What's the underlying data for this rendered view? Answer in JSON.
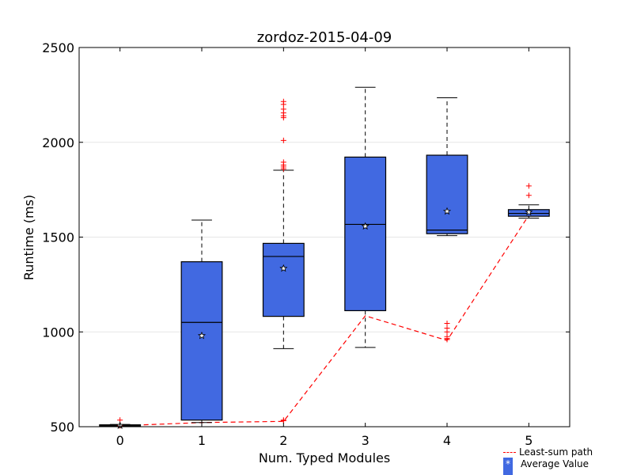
{
  "chart_data": {
    "type": "box",
    "title": "zordoz-2015-04-09",
    "xlabel": "Num. Typed Modules",
    "ylabel": "Runtime (ms)",
    "categories": [
      "0",
      "1",
      "2",
      "3",
      "4",
      "5"
    ],
    "ylim": [
      500,
      2500
    ],
    "yticks": [
      "500",
      "1000",
      "1500",
      "2000",
      "2500"
    ],
    "grid": "horizontal",
    "box_color": "#4169e1",
    "outlier_color": "#ff0000",
    "path_color": "#ff0000",
    "boxes": [
      {
        "category": "0",
        "whisker_low": 500,
        "q1": 502,
        "median": 506,
        "q3": 510,
        "whisker_high": 512,
        "mean": 506,
        "outliers": [
          535,
          505
        ]
      },
      {
        "category": "1",
        "whisker_low": 522,
        "q1": 535,
        "median": 1050,
        "q3": 1370,
        "whisker_high": 1590,
        "mean": 980,
        "outliers": []
      },
      {
        "category": "2",
        "whisker_low": 912,
        "q1": 1082,
        "median": 1398,
        "q3": 1467,
        "whisker_high": 1853,
        "mean": 1335,
        "outliers": [
          2215,
          2200,
          2175,
          2155,
          2140,
          2130,
          2010,
          1895,
          1880,
          1870,
          1860,
          535,
          532
        ]
      },
      {
        "category": "3",
        "whisker_low": 918,
        "q1": 1112,
        "median": 1567,
        "q3": 1922,
        "whisker_high": 2290,
        "mean": 1557,
        "outliers": []
      },
      {
        "category": "4",
        "whisker_low": 1508,
        "q1": 1518,
        "median": 1537,
        "q3": 1932,
        "whisker_high": 2235,
        "mean": 1636,
        "outliers": [
          1045,
          1020,
          1000,
          975,
          965,
          960
        ]
      },
      {
        "category": "5",
        "whisker_low": 1600,
        "q1": 1610,
        "median": 1625,
        "q3": 1645,
        "whisker_high": 1670,
        "mean": 1632,
        "outliers": [
          1770,
          1720
        ]
      }
    ],
    "least_sum_path": [
      505,
      522,
      528,
      1085,
      955,
      1615
    ],
    "legend": {
      "position": "bottom-right",
      "entries": [
        {
          "label": "Least-sum path",
          "symbol": "---"
        },
        {
          "label": "Average Value",
          "symbol": "*"
        }
      ]
    }
  }
}
